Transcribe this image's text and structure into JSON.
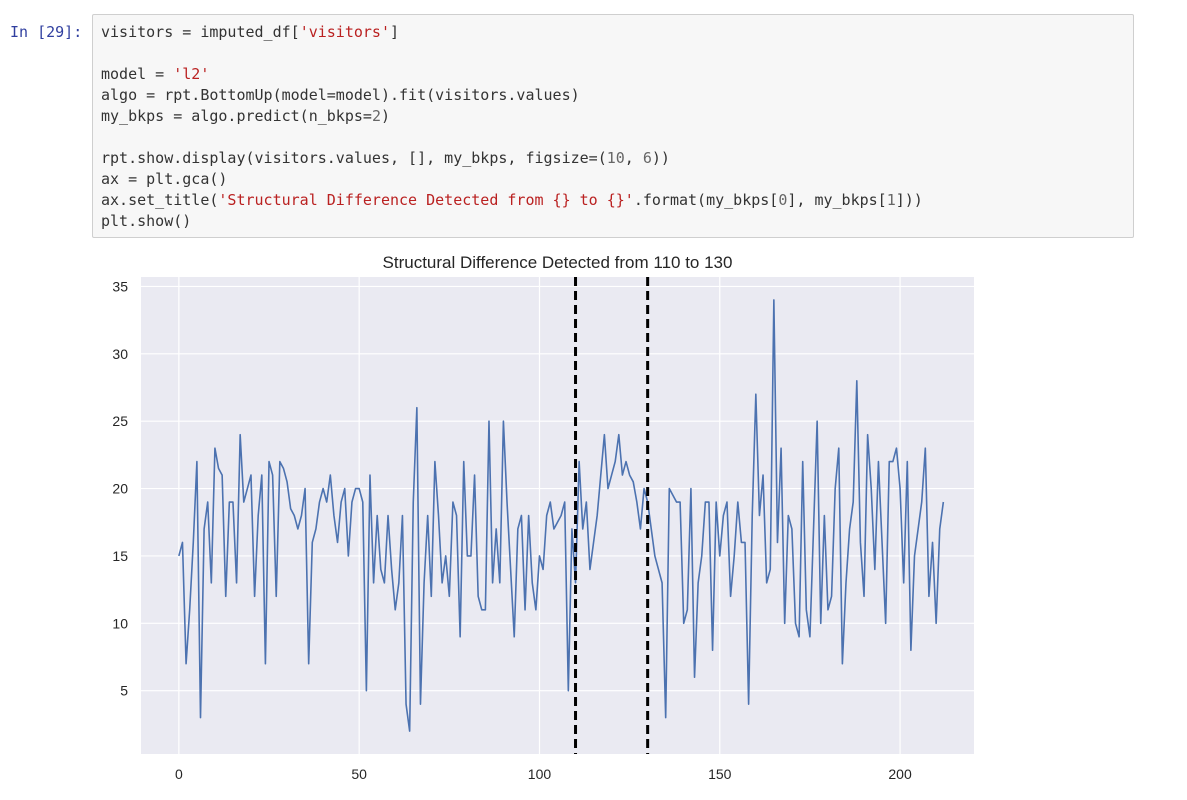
{
  "cell": {
    "prompt": "In [29]:",
    "code_lines": [
      [
        {
          "t": "visitors = imputed_df[",
          "c": ""
        },
        {
          "t": "'visitors'",
          "c": "str"
        },
        {
          "t": "]",
          "c": ""
        }
      ],
      [],
      [
        {
          "t": "model = ",
          "c": ""
        },
        {
          "t": "'l2'",
          "c": "str"
        }
      ],
      [
        {
          "t": "algo = rpt.BottomUp(model=model).fit(visitors.values)",
          "c": ""
        }
      ],
      [
        {
          "t": "my_bkps = algo.predict(n_bkps=",
          "c": ""
        },
        {
          "t": "2",
          "c": "num"
        },
        {
          "t": ")",
          "c": ""
        }
      ],
      [],
      [
        {
          "t": "rpt.show.display(visitors.values, [], my_bkps, figsize=(",
          "c": ""
        },
        {
          "t": "10",
          "c": "num"
        },
        {
          "t": ", ",
          "c": ""
        },
        {
          "t": "6",
          "c": "num"
        },
        {
          "t": "))",
          "c": ""
        }
      ],
      [
        {
          "t": "ax = plt.gca()",
          "c": ""
        }
      ],
      [
        {
          "t": "ax.set_title(",
          "c": ""
        },
        {
          "t": "'Structural Difference Detected from {} to {}'",
          "c": "str"
        },
        {
          "t": ".format(my_bkps[",
          "c": ""
        },
        {
          "t": "0",
          "c": "num"
        },
        {
          "t": "], my_bkps[",
          "c": ""
        },
        {
          "t": "1",
          "c": "num"
        },
        {
          "t": "]))",
          "c": ""
        }
      ],
      [
        {
          "t": "plt.show()",
          "c": ""
        }
      ]
    ]
  },
  "chart_data": {
    "type": "line",
    "title": "Structural Difference Detected from 110 to 130",
    "xlabel": "",
    "ylabel": "",
    "xlim": [
      -10.5,
      220.5
    ],
    "ylim": [
      0.3,
      35.7
    ],
    "xticks": [
      0,
      50,
      100,
      150,
      200
    ],
    "yticks": [
      5,
      10,
      15,
      20,
      25,
      30,
      35
    ],
    "grid": true,
    "breakpoints": [
      110,
      130
    ],
    "series": [
      {
        "color": "#4c72b0",
        "values": [
          15,
          16,
          7,
          11,
          16,
          22,
          3,
          17,
          19,
          13,
          23,
          21.5,
          21,
          12,
          19,
          19,
          13,
          24,
          19,
          20,
          21,
          12,
          18,
          21,
          7,
          22,
          21,
          12,
          22,
          21.5,
          20.5,
          18.5,
          18,
          17,
          18,
          20,
          7,
          16,
          17,
          19,
          20,
          19,
          21,
          18,
          16,
          19,
          20,
          15,
          19,
          20,
          20,
          19,
          5,
          21,
          13,
          18,
          14,
          13,
          18,
          14,
          11,
          13,
          18,
          4,
          2,
          19,
          26,
          4,
          13,
          18,
          12,
          22,
          18,
          13,
          15,
          12,
          19,
          18,
          9,
          22,
          15,
          15,
          21,
          12,
          11,
          11,
          25,
          13,
          17,
          13,
          25,
          19,
          14,
          9,
          17,
          18,
          11,
          18,
          13,
          11,
          15,
          14,
          18,
          19,
          17,
          17.5,
          18,
          19,
          5,
          17,
          13,
          22,
          17,
          19,
          14,
          16,
          18,
          21,
          24,
          20,
          21,
          22,
          24,
          21,
          22,
          21,
          20.5,
          19,
          17,
          20,
          19,
          17,
          15,
          14,
          13,
          3,
          20,
          19.5,
          19,
          19,
          10,
          11,
          20,
          6,
          13,
          15,
          19,
          19,
          8,
          19,
          15,
          18,
          19,
          12,
          15,
          19,
          16,
          16,
          4,
          18,
          27,
          18,
          21,
          13,
          14,
          34,
          16,
          23,
          10,
          18,
          17,
          10,
          9,
          22,
          11,
          9,
          17,
          25,
          10,
          18,
          11,
          12,
          20,
          23,
          7,
          13,
          17,
          19,
          28,
          16,
          12,
          24,
          20,
          14,
          22,
          16,
          10,
          22,
          22,
          23,
          20,
          13,
          22,
          8,
          15,
          17,
          19,
          23,
          12,
          16,
          10,
          17,
          19
        ]
      }
    ]
  }
}
